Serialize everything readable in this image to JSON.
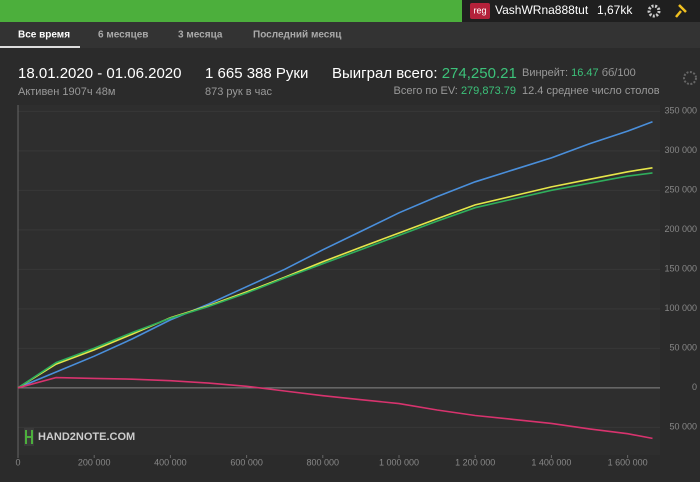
{
  "topbar": {
    "badge": "reg",
    "user": "VashWRna888tut",
    "balance": "1,67kk"
  },
  "tabs": [
    "Все время",
    "6 месяцев",
    "3 месяца",
    "Последний месяц"
  ],
  "stats": {
    "period": "18.01.2020 - 01.06.2020",
    "active": "Активен 1907ч 48м",
    "hands": "1 665 388 Руки",
    "hands_per_hour": "873 рук в час",
    "won_label": "Выиграл всего:",
    "won_value": "274,250.21",
    "ev_label": "Всего по EV:",
    "ev_value": "279,873.79",
    "winrate_label": "Винрейт:",
    "winrate_value": "16.47",
    "winrate_unit": "бб/100",
    "tables": "12.4 среднее число столов"
  },
  "watermark": "HAND2NOTE.COM",
  "chart_data": {
    "type": "line",
    "x": [
      0,
      100000,
      200000,
      300000,
      400000,
      500000,
      600000,
      700000,
      800000,
      900000,
      1000000,
      1100000,
      1200000,
      1300000,
      1400000,
      1500000,
      1600000,
      1665388
    ],
    "series": [
      {
        "color": "#4a8fdb",
        "values": [
          0,
          20000,
          40000,
          62000,
          86000,
          106000,
          128000,
          150000,
          174700,
          198000,
          221500,
          242000,
          260800,
          276000,
          291000,
          309000,
          325000,
          336700
        ]
      },
      {
        "color": "#e6e64a",
        "values": [
          0,
          30000,
          48000,
          68000,
          88600,
          104000,
          121500,
          140000,
          159500,
          178000,
          196000,
          214000,
          231600,
          243000,
          254400,
          264000,
          273400,
          278500
        ]
      },
      {
        "color": "#2fae5c",
        "values": [
          0,
          32000,
          50000,
          70000,
          88000,
          103000,
          120000,
          139000,
          157000,
          175000,
          193000,
          211000,
          228000,
          239000,
          250000,
          259000,
          268000,
          272000
        ]
      },
      {
        "color": "#d8336e",
        "values": [
          0,
          13000,
          12000,
          11000,
          9000,
          6000,
          2000,
          -4000,
          -10000,
          -15000,
          -20000,
          -28000,
          -35000,
          -40000,
          -45000,
          -52000,
          -58000,
          -64000
        ]
      }
    ],
    "xlim": [
      0,
      1685000
    ],
    "ylim": [
      -85000,
      358000
    ],
    "xticks": [
      0,
      {
        "value": 200000,
        "label": "200 000"
      },
      {
        "value": 400000,
        "label": "400 000"
      },
      {
        "value": 600000,
        "label": "600 000"
      },
      {
        "value": 800000,
        "label": "800 000"
      },
      {
        "value": 1000000,
        "label": "1 000 000"
      },
      {
        "value": 1200000,
        "label": "1 200 000"
      },
      {
        "value": 1400000,
        "label": "1 400 000"
      },
      {
        "value": 1600000,
        "label": "1 600 000"
      }
    ],
    "yticks": [
      {
        "value": -50000,
        "label": "50 000"
      },
      0,
      {
        "value": 50000,
        "label": "50 000"
      },
      {
        "value": 100000,
        "label": "100 000"
      },
      {
        "value": 150000,
        "label": "150 000"
      },
      {
        "value": 200000,
        "label": "200 000"
      },
      {
        "value": 250000,
        "label": "250 000"
      },
      {
        "value": 300000,
        "label": "300 000"
      },
      {
        "value": 350000,
        "label": "350 000"
      }
    ]
  }
}
